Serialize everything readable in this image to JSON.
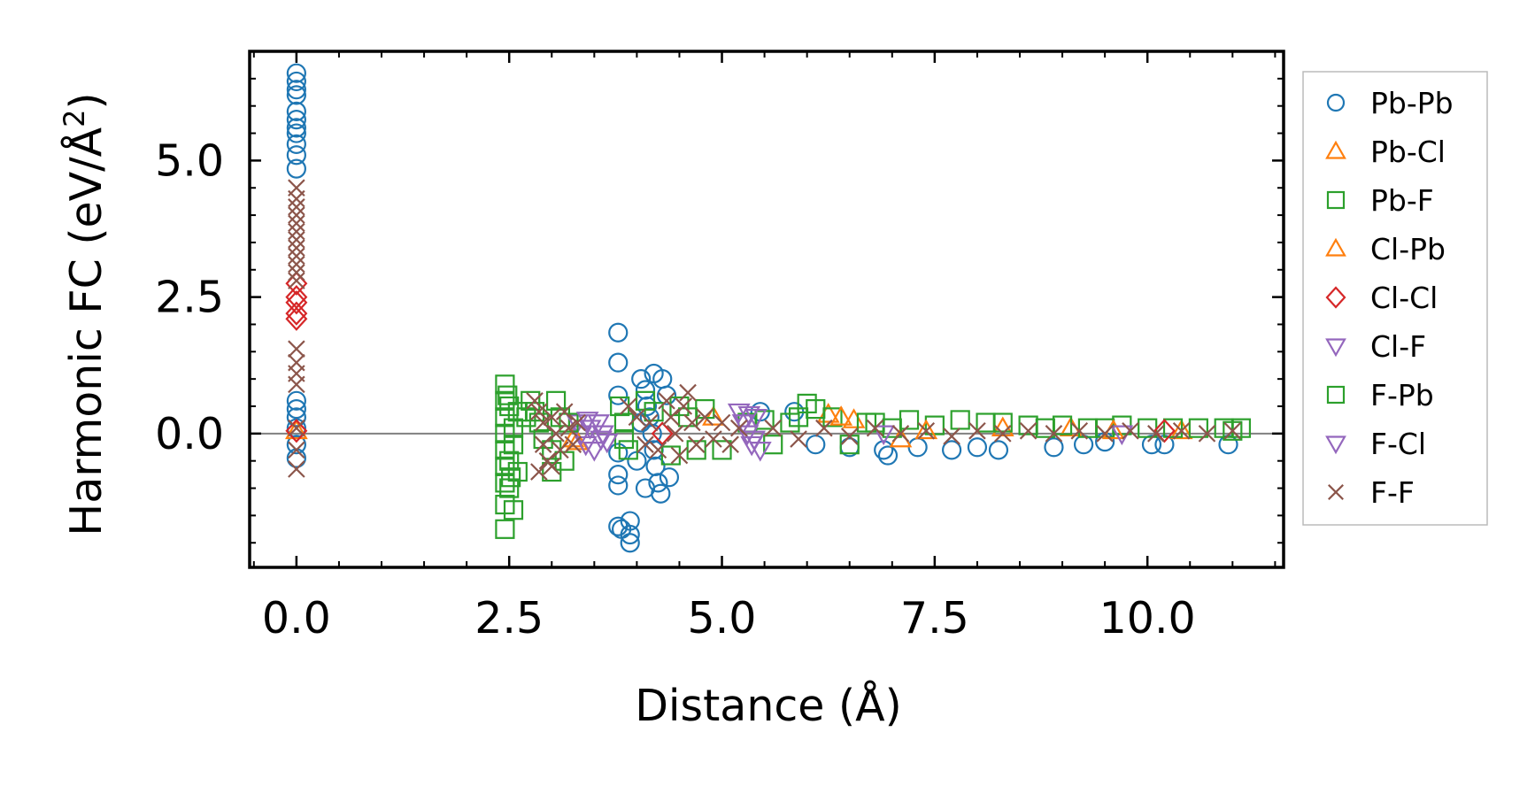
{
  "chart_data": {
    "type": "scatter",
    "xlabel": "Distance (Å)",
    "ylabel": "Harmonic FC (eV/Å",
    "ylabel_sup": "2",
    "ylabel_close": ")",
    "xlim": [
      -0.55,
      11.6
    ],
    "ylim": [
      -2.45,
      7.0
    ],
    "xticks": [
      0.0,
      2.5,
      5.0,
      7.5,
      10.0
    ],
    "xtick_labels": [
      "0.0",
      "2.5",
      "5.0",
      "7.5",
      "10.0"
    ],
    "yticks": [
      0.0,
      2.5,
      5.0
    ],
    "ytick_labels": [
      "0.0",
      "2.5",
      "5.0"
    ],
    "zero_line": true,
    "grid": false,
    "legend_position": "outside-right",
    "series": [
      {
        "name": "Pb-Pb",
        "marker": "circle",
        "color": "#1f77b4",
        "points": [
          [
            0,
            6.6
          ],
          [
            0,
            6.45
          ],
          [
            0,
            6.3
          ],
          [
            0,
            6.2
          ],
          [
            0,
            5.9
          ],
          [
            0,
            5.75
          ],
          [
            0,
            5.6
          ],
          [
            0,
            5.5
          ],
          [
            0,
            5.3
          ],
          [
            0,
            5.1
          ],
          [
            0,
            4.85
          ],
          [
            0,
            0.6
          ],
          [
            0,
            0.45
          ],
          [
            0,
            0.3
          ],
          [
            0,
            0.1
          ],
          [
            0,
            -0.2
          ],
          [
            0,
            -0.45
          ],
          [
            3.78,
            1.85
          ],
          [
            3.78,
            1.3
          ],
          [
            3.78,
            0.7
          ],
          [
            3.78,
            -0.35
          ],
          [
            3.78,
            -0.75
          ],
          [
            3.78,
            -0.95
          ],
          [
            3.78,
            -1.7
          ],
          [
            3.82,
            -1.75
          ],
          [
            3.92,
            -1.6
          ],
          [
            3.92,
            -1.85
          ],
          [
            3.92,
            -2.0
          ],
          [
            4.05,
            1.0
          ],
          [
            4.1,
            0.8
          ],
          [
            4.12,
            0.5
          ],
          [
            4.15,
            0.3
          ],
          [
            4.18,
            0.0
          ],
          [
            4.2,
            -0.3
          ],
          [
            4.22,
            -0.6
          ],
          [
            4.25,
            -0.9
          ],
          [
            4.28,
            -1.1
          ],
          [
            4.2,
            1.1
          ],
          [
            4.3,
            1.0
          ],
          [
            4.35,
            0.7
          ],
          [
            4.38,
            -0.8
          ],
          [
            4.1,
            -1.0
          ],
          [
            4.0,
            -0.5
          ],
          [
            4.05,
            0.2
          ],
          [
            5.45,
            0.4
          ],
          [
            5.85,
            0.4
          ],
          [
            6.1,
            -0.2
          ],
          [
            6.5,
            -0.25
          ],
          [
            6.9,
            -0.3
          ],
          [
            6.95,
            -0.4
          ],
          [
            7.3,
            -0.25
          ],
          [
            7.7,
            -0.3
          ],
          [
            8.0,
            -0.25
          ],
          [
            8.25,
            -0.3
          ],
          [
            8.9,
            -0.25
          ],
          [
            9.25,
            -0.2
          ],
          [
            9.5,
            -0.15
          ],
          [
            10.05,
            -0.2
          ],
          [
            10.2,
            -0.2
          ],
          [
            10.95,
            -0.2
          ]
        ]
      },
      {
        "name": "Pb-Cl",
        "marker": "triangle-up",
        "color": "#ff7f0e",
        "points": [
          [
            0,
            0.05
          ],
          [
            3.25,
            -0.1
          ],
          [
            4.9,
            0.3
          ],
          [
            6.25,
            0.35
          ],
          [
            6.55,
            0.25
          ],
          [
            7.1,
            -0.1
          ],
          [
            8.3,
            0.1
          ],
          [
            9.1,
            0.1
          ],
          [
            10.4,
            0.05
          ]
        ]
      },
      {
        "name": "Pb-F",
        "marker": "square",
        "color": "#2ca02c",
        "points": [
          [
            2.45,
            0.9
          ],
          [
            2.45,
            0.6
          ],
          [
            2.45,
            0.3
          ],
          [
            2.45,
            0.0
          ],
          [
            2.45,
            -0.3
          ],
          [
            2.45,
            -0.6
          ],
          [
            2.45,
            -0.9
          ],
          [
            2.45,
            -1.3
          ],
          [
            2.45,
            -1.75
          ],
          [
            2.5,
            0.5
          ],
          [
            2.5,
            -0.5
          ],
          [
            2.5,
            -1.0
          ],
          [
            2.55,
            0.1
          ],
          [
            2.55,
            -0.2
          ],
          [
            2.55,
            -1.4
          ],
          [
            2.6,
            0.4
          ],
          [
            2.6,
            -0.7
          ],
          [
            2.75,
            0.6
          ],
          [
            2.8,
            0.4
          ],
          [
            2.85,
            0.2
          ],
          [
            2.9,
            -0.1
          ],
          [
            3.0,
            -0.3
          ],
          [
            3.05,
            0.6
          ],
          [
            3.1,
            0.3
          ],
          [
            3.15,
            -0.5
          ],
          [
            3.0,
            -0.7
          ],
          [
            3.8,
            0.5
          ],
          [
            3.85,
            0.2
          ],
          [
            3.85,
            -0.1
          ],
          [
            3.9,
            -0.3
          ],
          [
            4.1,
            0.6
          ],
          [
            4.2,
            0.4
          ],
          [
            4.4,
            -0.4
          ],
          [
            4.5,
            0.5
          ],
          [
            4.6,
            0.3
          ],
          [
            4.7,
            -0.3
          ],
          [
            4.8,
            0.45
          ],
          [
            5.0,
            -0.3
          ],
          [
            5.3,
            0.2
          ],
          [
            5.5,
            0.25
          ],
          [
            5.6,
            -0.2
          ],
          [
            5.8,
            0.2
          ],
          [
            6.0,
            0.55
          ],
          [
            6.1,
            0.45
          ],
          [
            6.3,
            0.3
          ],
          [
            6.5,
            -0.2
          ],
          [
            6.8,
            0.2
          ],
          [
            7.0,
            0.1
          ],
          [
            7.2,
            0.25
          ],
          [
            7.5,
            0.15
          ],
          [
            7.8,
            0.25
          ],
          [
            8.1,
            0.2
          ],
          [
            8.3,
            0.2
          ],
          [
            8.6,
            0.15
          ],
          [
            9.0,
            0.15
          ],
          [
            9.3,
            0.1
          ],
          [
            9.5,
            0.1
          ],
          [
            9.7,
            0.15
          ],
          [
            10.0,
            0.1
          ],
          [
            10.3,
            0.1
          ],
          [
            10.6,
            0.1
          ],
          [
            10.9,
            0.1
          ],
          [
            11.1,
            0.1
          ]
        ]
      },
      {
        "name": "Cl-Pb",
        "marker": "triangle-up",
        "color": "#ff7f0e",
        "points": [
          [
            3.3,
            -0.15
          ],
          [
            6.4,
            0.3
          ],
          [
            7.4,
            0.05
          ],
          [
            9.6,
            0.05
          ]
        ]
      },
      {
        "name": "Cl-Cl",
        "marker": "diamond",
        "color": "#d62728",
        "points": [
          [
            0,
            2.75
          ],
          [
            0,
            2.5
          ],
          [
            0,
            2.4
          ],
          [
            0,
            2.2
          ],
          [
            0,
            2.1
          ],
          [
            0,
            0.05
          ],
          [
            4.3,
            0.0
          ],
          [
            10.2,
            0.05
          ]
        ]
      },
      {
        "name": "Cl-F",
        "marker": "triangle-down",
        "color": "#9467bd",
        "points": [
          [
            3.3,
            0.2
          ],
          [
            3.35,
            0.0
          ],
          [
            3.4,
            -0.2
          ],
          [
            3.45,
            0.1
          ],
          [
            3.5,
            -0.3
          ],
          [
            3.55,
            0.2
          ],
          [
            3.6,
            0.0
          ],
          [
            3.65,
            -0.15
          ],
          [
            5.2,
            0.4
          ],
          [
            5.25,
            0.2
          ],
          [
            5.3,
            0.0
          ],
          [
            5.35,
            -0.2
          ],
          [
            5.4,
            0.3
          ],
          [
            5.45,
            -0.3
          ],
          [
            6.9,
            0.0
          ],
          [
            9.7,
            0.0
          ]
        ]
      },
      {
        "name": "F-Pb",
        "marker": "square",
        "color": "#2ca02c",
        "points": [
          [
            2.48,
            0.7
          ],
          [
            2.52,
            -0.8
          ],
          [
            2.7,
            0.3
          ],
          [
            3.2,
            0.2
          ],
          [
            5.9,
            0.3
          ],
          [
            6.7,
            0.2
          ],
          [
            8.8,
            0.1
          ],
          [
            11.0,
            0.05
          ]
        ]
      },
      {
        "name": "F-Cl",
        "marker": "triangle-down",
        "color": "#9467bd",
        "points": [
          [
            3.42,
            0.25
          ],
          [
            3.58,
            -0.1
          ],
          [
            5.32,
            0.35
          ],
          [
            5.38,
            -0.1
          ]
        ]
      },
      {
        "name": "F-F",
        "marker": "x",
        "color": "#8c564b",
        "points": [
          [
            0,
            4.5
          ],
          [
            0,
            4.3
          ],
          [
            0,
            4.15
          ],
          [
            0,
            4.0
          ],
          [
            0,
            3.85
          ],
          [
            0,
            3.7
          ],
          [
            0,
            3.55
          ],
          [
            0,
            3.4
          ],
          [
            0,
            3.25
          ],
          [
            0,
            3.1
          ],
          [
            0,
            2.95
          ],
          [
            0,
            2.8
          ],
          [
            0,
            1.55
          ],
          [
            0,
            1.3
          ],
          [
            0,
            1.1
          ],
          [
            0,
            0.9
          ],
          [
            0,
            0.1
          ],
          [
            0,
            -0.3
          ],
          [
            0,
            -0.65
          ],
          [
            2.8,
            0.6
          ],
          [
            2.85,
            0.4
          ],
          [
            2.9,
            0.2
          ],
          [
            2.9,
            -0.2
          ],
          [
            2.95,
            -0.5
          ],
          [
            3.0,
            0.3
          ],
          [
            3.05,
            0.0
          ],
          [
            3.1,
            -0.3
          ],
          [
            3.15,
            0.4
          ],
          [
            3.2,
            0.1
          ],
          [
            3.25,
            -0.2
          ],
          [
            3.3,
            0.2
          ],
          [
            2.85,
            -0.7
          ],
          [
            3.0,
            -0.6
          ],
          [
            3.9,
            0.5
          ],
          [
            4.0,
            0.3
          ],
          [
            4.1,
            -0.2
          ],
          [
            4.15,
            0.2
          ],
          [
            4.25,
            -0.3
          ],
          [
            4.35,
            0.6
          ],
          [
            4.4,
            0.3
          ],
          [
            4.45,
            0.0
          ],
          [
            4.5,
            -0.4
          ],
          [
            4.55,
            0.5
          ],
          [
            4.6,
            0.75
          ],
          [
            4.65,
            0.2
          ],
          [
            4.7,
            -0.2
          ],
          [
            4.8,
            0.3
          ],
          [
            4.9,
            -0.1
          ],
          [
            5.0,
            0.2
          ],
          [
            5.1,
            -0.2
          ],
          [
            5.2,
            0.1
          ],
          [
            5.6,
            0.1
          ],
          [
            5.9,
            -0.1
          ],
          [
            6.2,
            0.1
          ],
          [
            6.5,
            -0.05
          ],
          [
            6.8,
            0.1
          ],
          [
            7.1,
            0.0
          ],
          [
            7.4,
            0.05
          ],
          [
            7.7,
            -0.05
          ],
          [
            8.0,
            0.05
          ],
          [
            8.3,
            0.0
          ],
          [
            8.6,
            0.05
          ],
          [
            8.9,
            0.0
          ],
          [
            9.2,
            0.05
          ],
          [
            9.5,
            0.0
          ],
          [
            9.8,
            0.05
          ],
          [
            10.1,
            0.0
          ],
          [
            10.4,
            0.05
          ],
          [
            10.7,
            0.0
          ],
          [
            11.0,
            0.05
          ]
        ]
      }
    ]
  }
}
